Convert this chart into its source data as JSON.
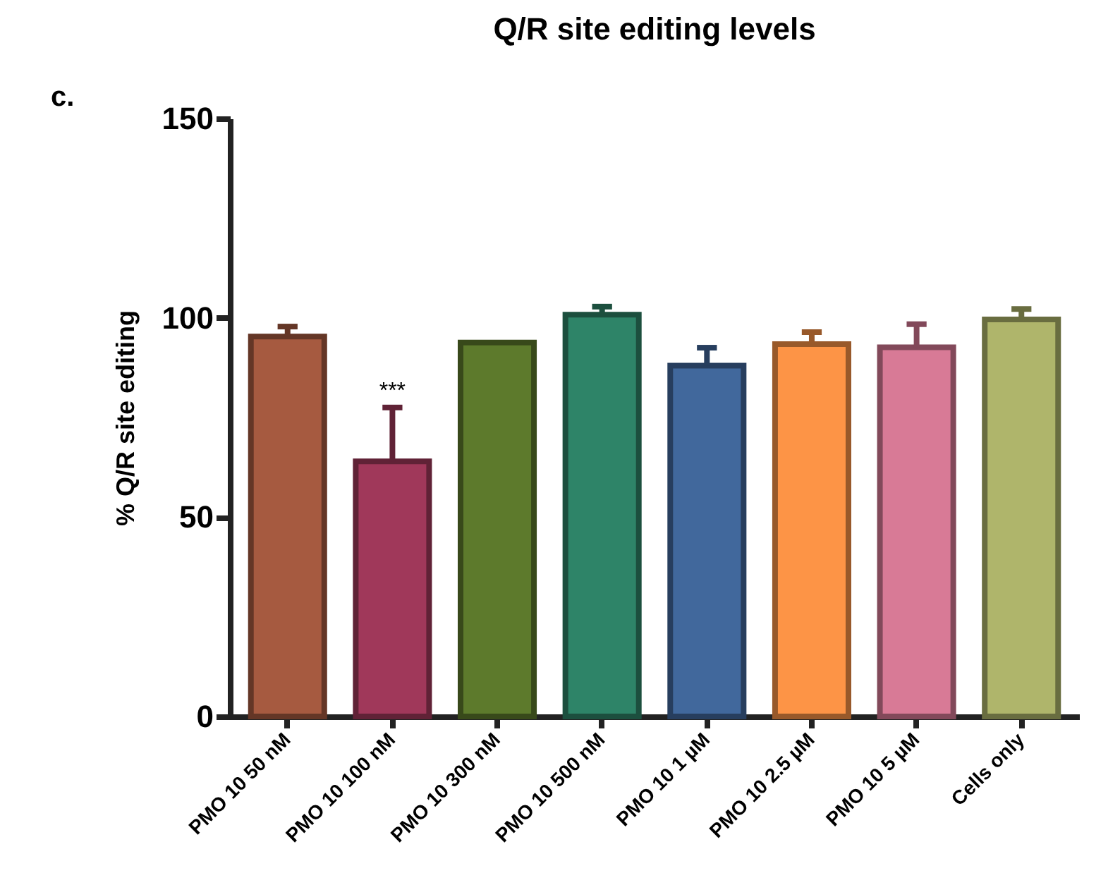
{
  "chart_data": {
    "type": "bar",
    "title": "Q/R site editing levels",
    "ylabel": "% Q/R site editing",
    "categories": [
      "PMO 10 50 nM",
      "PMO 10 100 nM",
      "PMO 10 300 nM",
      "PMO 10 500 nM",
      "PMO 10 1 µM",
      "PMO 10 2.5 µM",
      "PMO 10 5 µM",
      "Cells only"
    ],
    "values": [
      95.3,
      64,
      93.8,
      100.8,
      88,
      93.4,
      92.6,
      99.6
    ],
    "errors": [
      [
        95.3,
        97.8
      ],
      [
        64,
        77.5
      ],
      null,
      [
        100.8,
        102.8
      ],
      [
        88,
        92.5
      ],
      [
        93.4,
        96.4
      ],
      [
        92.6,
        98.4
      ],
      [
        99.6,
        102.2
      ]
    ],
    "colors": [
      "#a65a40",
      "#a0385a",
      "#5d7a2c",
      "#2e8468",
      "#41689c",
      "#fd9446",
      "#d87a96",
      "#afb56b"
    ],
    "ylim": [
      0,
      150
    ],
    "yticks": [
      0,
      50,
      100,
      150
    ],
    "grid": false,
    "legend": false,
    "annotations": [
      "c.",
      {
        "text": "***",
        "x": "PMO 10 100 nM",
        "y": 77.5
      }
    ]
  }
}
